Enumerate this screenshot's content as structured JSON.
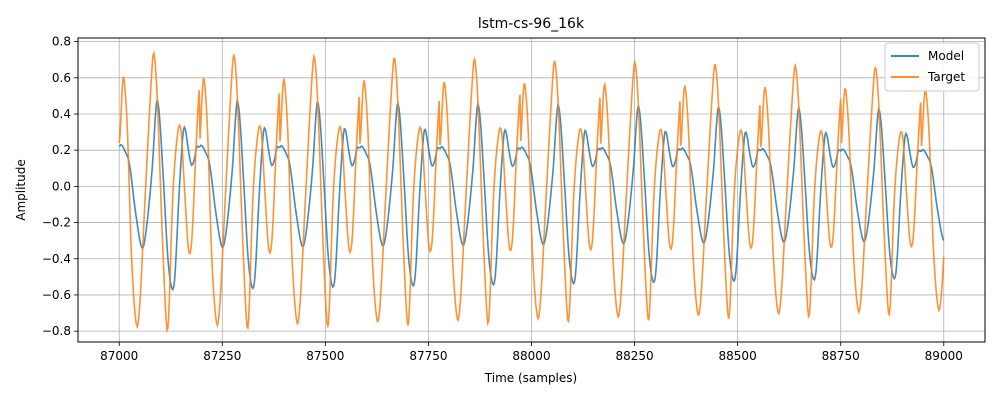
{
  "chart_data": {
    "type": "line",
    "title": "lstm-cs-96_16k",
    "xlabel": "Time (samples)",
    "ylabel": "Amplitude",
    "xlim": [
      86900,
      89100
    ],
    "ylim": [
      -0.86,
      0.82
    ],
    "xticks": [
      87000,
      87250,
      87500,
      87750,
      88000,
      88250,
      88500,
      88750,
      89000
    ],
    "yticks": [
      -0.8,
      -0.6,
      -0.4,
      -0.2,
      0.0,
      0.2,
      0.4,
      0.6,
      0.8
    ],
    "xtick_labels": [
      "87000",
      "87250",
      "87500",
      "87750",
      "88000",
      "88250",
      "88500",
      "88750",
      "89000"
    ],
    "ytick_labels": [
      "−0.8",
      "−0.6",
      "−0.4",
      "−0.2",
      "0.0",
      "0.2",
      "0.4",
      "0.6",
      "0.8"
    ],
    "grid": true,
    "legend_position": "top-right",
    "period_samples": 194.5,
    "series": [
      {
        "name": "Model",
        "color": "#1f77b4",
        "x_start": 87000,
        "x_end": 89000,
        "keyframes": [
          [
            0,
            0.22
          ],
          [
            5,
            0.23
          ],
          [
            15,
            0.19
          ],
          [
            25,
            0.12
          ],
          [
            40,
            -0.15
          ],
          [
            55,
            -0.34
          ],
          [
            65,
            -0.25
          ],
          [
            80,
            0.1
          ],
          [
            88,
            0.4
          ],
          [
            92,
            0.48
          ],
          [
            98,
            0.38
          ],
          [
            108,
            0.0
          ],
          [
            118,
            -0.4
          ],
          [
            128,
            -0.57
          ],
          [
            135,
            -0.5
          ],
          [
            145,
            -0.05
          ],
          [
            155,
            0.3
          ],
          [
            160,
            0.32
          ],
          [
            168,
            0.2
          ],
          [
            175,
            0.12
          ],
          [
            182,
            0.15
          ],
          [
            188,
            0.22
          ]
        ]
      },
      {
        "name": "Target",
        "color": "#ff7f0e",
        "x_start": 87000,
        "x_end": 89000,
        "keyframes": [
          [
            0,
            0.24
          ],
          [
            8,
            0.57
          ],
          [
            12,
            0.59
          ],
          [
            20,
            0.3
          ],
          [
            30,
            -0.4
          ],
          [
            42,
            -0.77
          ],
          [
            50,
            -0.65
          ],
          [
            62,
            -0.1
          ],
          [
            78,
            0.6
          ],
          [
            84,
            0.74
          ],
          [
            92,
            0.5
          ],
          [
            105,
            -0.3
          ],
          [
            115,
            -0.78
          ],
          [
            120,
            -0.72
          ],
          [
            130,
            -0.05
          ],
          [
            142,
            0.3
          ],
          [
            150,
            0.31
          ],
          [
            158,
            0.0
          ],
          [
            168,
            -0.35
          ],
          [
            176,
            -0.3
          ],
          [
            188,
            0.3
          ],
          [
            196,
            0.55
          ]
        ]
      }
    ]
  }
}
